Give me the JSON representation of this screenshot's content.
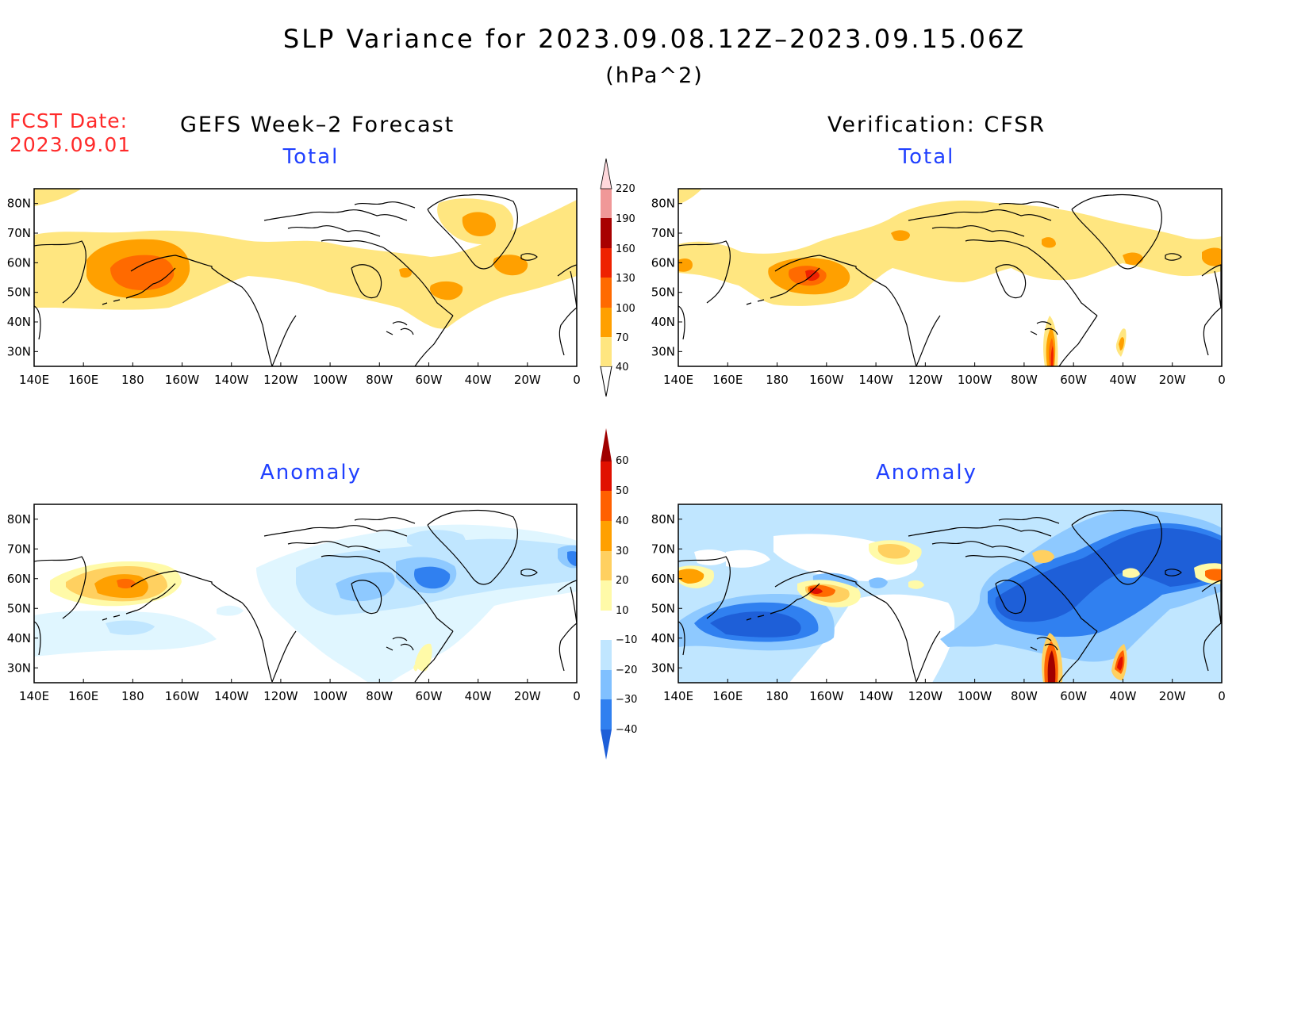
{
  "title": "SLP Variance for 2023.09.08.12Z–2023.09.15.06Z",
  "units": "(hPa^2)",
  "forecast_date_label": "FCST Date:",
  "forecast_date": "2023.09.01",
  "columns": {
    "left": "GEFS Week–2 Forecast",
    "right": "Verification: CFSR"
  },
  "panel_titles": {
    "top_left": "Total",
    "top_right": "Total",
    "bottom_left": "Anomaly",
    "bottom_right": "Anomaly"
  },
  "axes": {
    "lon_labels": [
      "140E",
      "160E",
      "180",
      "160W",
      "140W",
      "120W",
      "100W",
      "80W",
      "60W",
      "40W",
      "20W",
      "0"
    ],
    "lat_labels": [
      "80N",
      "70N",
      "60N",
      "50N",
      "40N",
      "30N"
    ]
  },
  "colorbars": {
    "total": {
      "levels": [
        "40",
        "70",
        "100",
        "130",
        "160",
        "190",
        "220"
      ],
      "colors": [
        "#ffe680",
        "#ffa000",
        "#ff6a00",
        "#ee2200",
        "#a80000",
        "#f09898",
        "#ffd8dc"
      ]
    },
    "anomaly": {
      "levels": [
        "−40",
        "−30",
        "−20",
        "−10",
        "10",
        "20",
        "30",
        "40",
        "50",
        "60"
      ],
      "colors": [
        "#1e5fd8",
        "#3080f0",
        "#80c0ff",
        "#c0e6ff",
        "#e0f6ff",
        "#ffffff",
        "#fffaa8",
        "#ffd060",
        "#ffa000",
        "#ff6000",
        "#e01000",
        "#a00000"
      ]
    }
  }
}
